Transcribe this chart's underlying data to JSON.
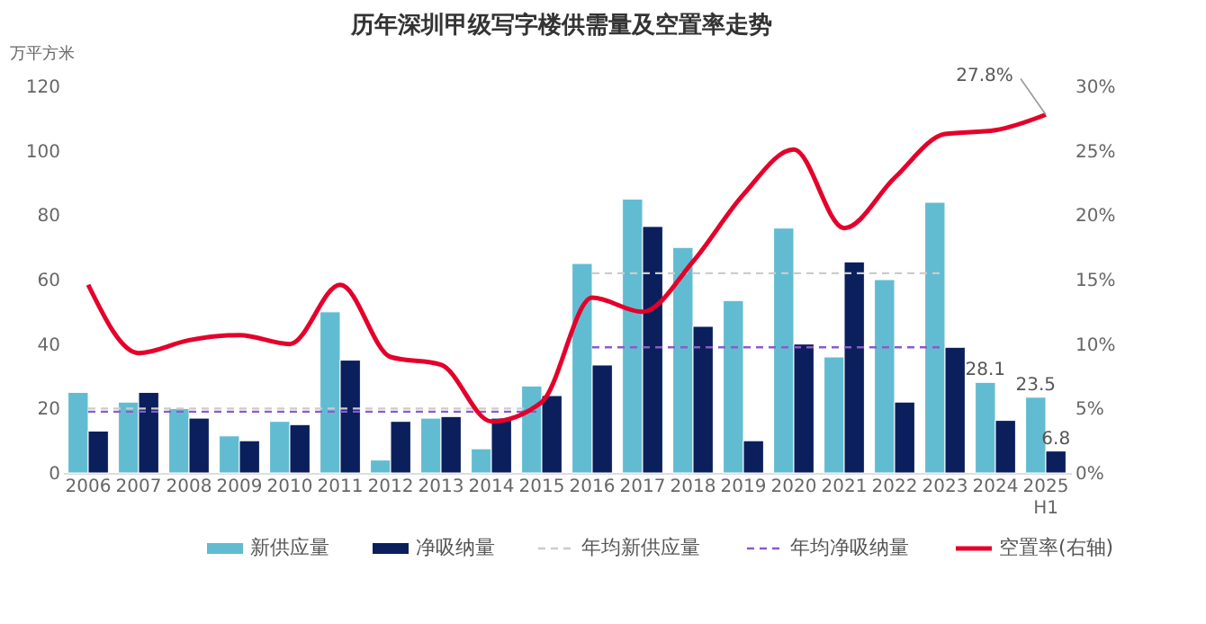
{
  "chart_data": {
    "type": "bar",
    "title": "历年深圳甲级写字楼供需量及空置率走势",
    "ylabel": "万平方米",
    "categories": [
      "2006",
      "2007",
      "2008",
      "2009",
      "2010",
      "2011",
      "2012",
      "2013",
      "2014",
      "2015",
      "2016",
      "2017",
      "2018",
      "2019",
      "2020",
      "2021",
      "2022",
      "2023",
      "2024",
      "2025\nH1"
    ],
    "series": [
      {
        "name": "新供应量",
        "type": "bar",
        "color": "#62bcd1",
        "values": [
          25,
          22,
          20,
          11.5,
          16,
          50,
          4,
          17,
          7.5,
          27,
          65,
          85,
          70,
          53.5,
          76,
          36,
          60,
          84,
          28.1,
          23.5
        ],
        "value_labels": [
          null,
          null,
          null,
          null,
          null,
          null,
          null,
          null,
          null,
          null,
          null,
          null,
          null,
          null,
          null,
          null,
          null,
          null,
          "28.1",
          "23.5"
        ]
      },
      {
        "name": "净吸纳量",
        "type": "bar",
        "color": "#0a1f5c",
        "values": [
          13,
          25,
          17,
          10,
          15,
          35,
          16,
          17.5,
          17,
          24,
          33.5,
          76.5,
          45.5,
          10,
          40,
          65.5,
          22,
          39,
          16.3,
          6.8
        ],
        "value_labels": [
          null,
          null,
          null,
          null,
          null,
          null,
          null,
          null,
          null,
          null,
          null,
          null,
          null,
          null,
          null,
          null,
          null,
          null,
          null,
          "6.8"
        ]
      },
      {
        "name": "年均新供应量",
        "type": "line",
        "line_style": "dashed",
        "color": "#cccccc",
        "values": [
          20,
          20,
          20,
          20,
          20,
          20,
          20,
          20,
          20,
          20,
          62,
          62,
          62,
          62,
          62,
          62,
          62,
          62,
          null,
          null
        ]
      },
      {
        "name": "年均净吸纳量",
        "type": "line",
        "line_style": "dashed",
        "color": "#8a5cc7",
        "values": [
          19,
          19,
          19,
          19,
          19,
          19,
          19,
          19,
          19,
          19,
          39,
          39,
          39,
          39,
          39,
          39,
          39,
          39,
          null,
          null
        ]
      },
      {
        "name": "空置率(右轴)",
        "type": "line",
        "axis": "y2",
        "line_style": "solid",
        "color": "#e4002b",
        "values": [
          14.6,
          9.3,
          10.3,
          10.7,
          10.0,
          14.6,
          9.0,
          8.4,
          4.0,
          5.5,
          13.6,
          12.5,
          16.4,
          21.6,
          25.1,
          19.0,
          22.9,
          26.3,
          26.6,
          27.8
        ],
        "value_labels": [
          null,
          null,
          null,
          null,
          null,
          null,
          null,
          null,
          null,
          null,
          null,
          null,
          null,
          null,
          null,
          null,
          null,
          null,
          null,
          "27.8%"
        ]
      }
    ],
    "ylim": [
      0,
      120
    ],
    "yticks": [
      0,
      20,
      40,
      60,
      80,
      100,
      120
    ],
    "y2lim": [
      0,
      30
    ],
    "y2ticks": [
      {
        "value": 0,
        "label": "0%"
      },
      {
        "value": 5,
        "label": "5%"
      },
      {
        "value": 10,
        "label": "10%"
      },
      {
        "value": 15,
        "label": "15%"
      },
      {
        "value": 20,
        "label": "20%"
      },
      {
        "value": 25,
        "label": "25%"
      },
      {
        "value": 30,
        "label": "30%"
      }
    ],
    "grid": false,
    "legend": "bottom",
    "marker": "none"
  }
}
